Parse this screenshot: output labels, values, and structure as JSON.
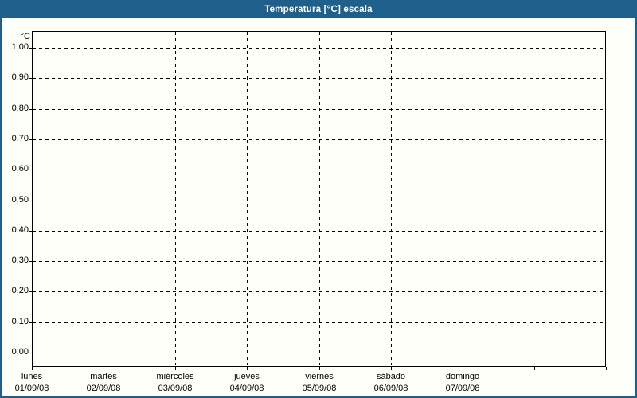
{
  "title": "Temperatura [°C] escala",
  "colors": {
    "frame": "#1E5F8C",
    "titlebar_bg": "#1E5F8C",
    "titlebar_text": "#FFFFFF",
    "background": "#FDFFF8",
    "plot_border": "#000000",
    "gridline": "#000000",
    "label_text": "#000000"
  },
  "chart_data": {
    "type": "line",
    "title": "Temperatura [°C] escala",
    "series": [],
    "grid": "dashed",
    "legend": "none",
    "y_axis": {
      "unit_label": "°C",
      "min": 0.0,
      "max": 1.0,
      "step": 0.1,
      "decimal_style": "comma",
      "tick_labels": [
        "1,00",
        "0,90",
        "0,80",
        "0,70",
        "0,60",
        "0,50",
        "0,40",
        "0,30",
        "0,20",
        "0,10",
        "0,00"
      ]
    },
    "x_axis": {
      "columns": 7,
      "categories": [
        {
          "day": "lunes",
          "date": "01/09/08"
        },
        {
          "day": "martes",
          "date": "02/09/08"
        },
        {
          "day": "miércoles",
          "date": "03/09/08"
        },
        {
          "day": "jueves",
          "date": "04/09/08"
        },
        {
          "day": "viernes",
          "date": "05/09/08"
        },
        {
          "day": "sábado",
          "date": "06/09/08"
        },
        {
          "day": "domingo",
          "date": "07/09/08"
        }
      ]
    }
  }
}
